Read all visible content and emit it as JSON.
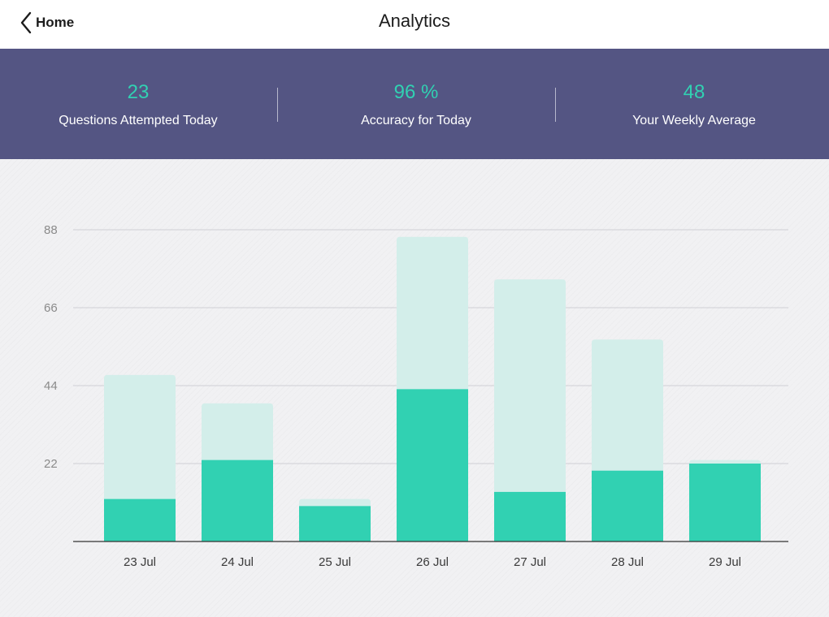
{
  "nav": {
    "back_label": "Home",
    "title": "Analytics"
  },
  "stats": [
    {
      "value": "23",
      "label": "Questions Attempted Today"
    },
    {
      "value": "96 %",
      "label": "Accuracy for Today"
    },
    {
      "value": "48",
      "label": "Your Weekly Average"
    }
  ],
  "colors": {
    "accent": "#31d1b2",
    "accent_light": "#d3eeea",
    "stats_band": "#545583"
  },
  "chart_data": {
    "type": "bar",
    "categories": [
      "23 Jul",
      "24 Jul",
      "25 Jul",
      "26 Jul",
      "27 Jul",
      "28 Jul",
      "29 Jul"
    ],
    "series": [
      {
        "values": [
          47,
          39,
          12,
          86,
          74,
          57,
          23
        ]
      },
      {
        "values": [
          12,
          23,
          10,
          43,
          14,
          20,
          22
        ]
      }
    ],
    "yticks": [
      22,
      44,
      66,
      88
    ],
    "ylim": [
      0,
      88
    ],
    "grid": true
  }
}
